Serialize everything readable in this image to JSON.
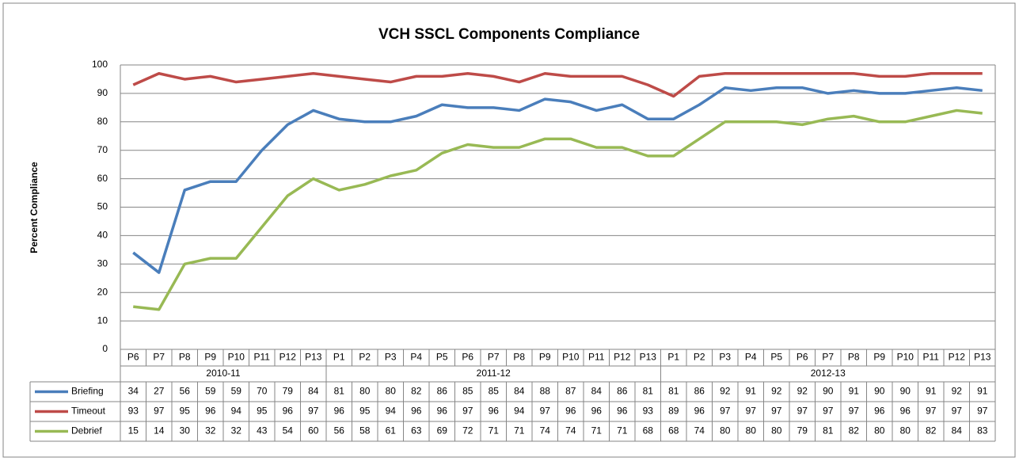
{
  "chart_data": {
    "type": "line",
    "title": "VCH SSCL Components Compliance",
    "y_label": "Percent Compliance",
    "groups": [
      {
        "label": "2010-11",
        "categories": [
          "P6",
          "P7",
          "P8",
          "P9",
          "P10",
          "P11",
          "P12",
          "P13"
        ]
      },
      {
        "label": "2011-12",
        "categories": [
          "P1",
          "P2",
          "P3",
          "P4",
          "P5",
          "P6",
          "P7",
          "P8",
          "P9",
          "P10",
          "P11",
          "P12",
          "P13"
        ]
      },
      {
        "label": "2012-13",
        "categories": [
          "P1",
          "P2",
          "P3",
          "P4",
          "P5",
          "P6",
          "P7",
          "P8",
          "P9",
          "P10",
          "P11",
          "P12",
          "P13"
        ]
      }
    ],
    "series": [
      {
        "name": "Briefing",
        "color": "#4a7ebb",
        "values": [
          34,
          27,
          56,
          59,
          59,
          70,
          79,
          84,
          81,
          80,
          80,
          82,
          86,
          85,
          85,
          84,
          88,
          87,
          84,
          86,
          81,
          81,
          86,
          92,
          91,
          92,
          92,
          90,
          91,
          90,
          90,
          91,
          92,
          91
        ]
      },
      {
        "name": "Timeout",
        "color": "#be4b48",
        "values": [
          93,
          97,
          95,
          96,
          94,
          95,
          96,
          97,
          96,
          95,
          94,
          96,
          96,
          97,
          96,
          94,
          97,
          96,
          96,
          96,
          93,
          89,
          96,
          97,
          97,
          97,
          97,
          97,
          97,
          96,
          96,
          97,
          97,
          97
        ]
      },
      {
        "name": "Debrief",
        "color": "#98b954",
        "values": [
          15,
          14,
          30,
          32,
          32,
          43,
          54,
          60,
          56,
          58,
          61,
          63,
          69,
          72,
          71,
          71,
          74,
          74,
          71,
          71,
          68,
          68,
          74,
          80,
          80,
          80,
          79,
          81,
          82,
          80,
          80,
          82,
          84,
          83
        ]
      }
    ],
    "ylim": [
      0,
      100
    ],
    "yticks": [
      0,
      10,
      20,
      30,
      40,
      50,
      60,
      70,
      80,
      90,
      100
    ],
    "grid": true
  }
}
